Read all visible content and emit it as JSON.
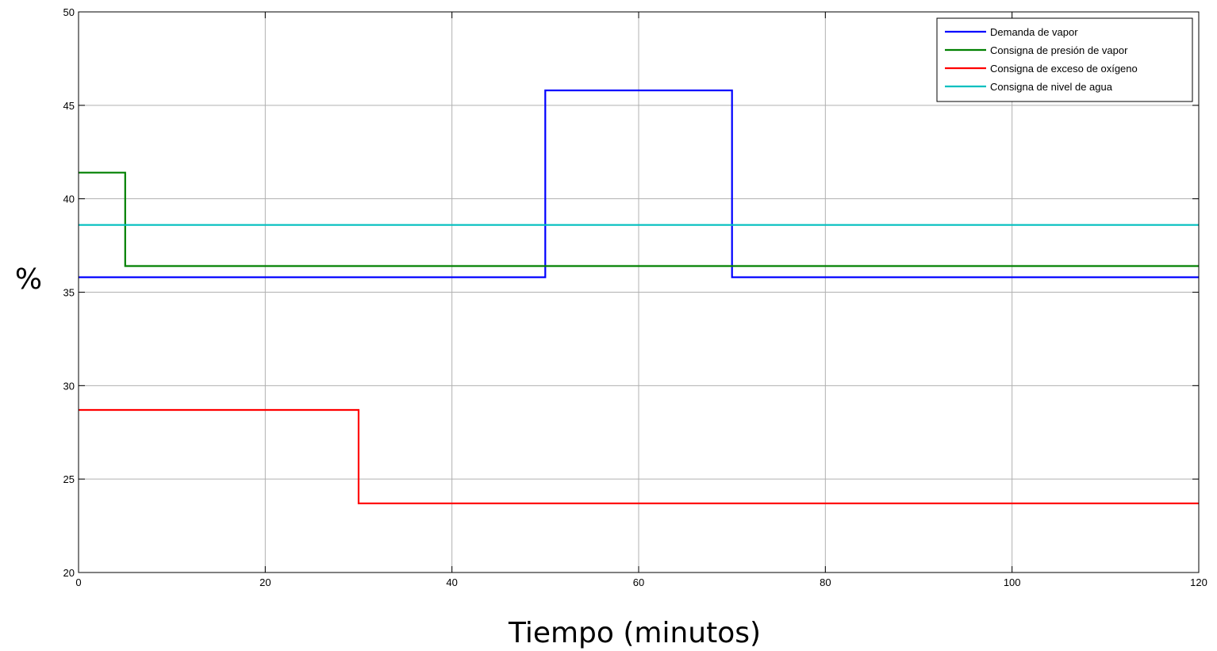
{
  "chart_data": {
    "type": "line",
    "step": true,
    "xlabel": "Tiempo (minutos)",
    "ylabel": "%",
    "xlim": [
      0,
      120
    ],
    "ylim": [
      20,
      50
    ],
    "xticks": [
      "0",
      "20",
      "40",
      "60",
      "80",
      "100",
      "120"
    ],
    "yticks": [
      "20",
      "25",
      "30",
      "35",
      "40",
      "45",
      "50"
    ],
    "grid": true,
    "legend_position": "top-right",
    "series": [
      {
        "name": "Demanda de vapor",
        "color": "#0000ff",
        "x": [
          0,
          50,
          50,
          70,
          70,
          120
        ],
        "y": [
          35.8,
          35.8,
          45.8,
          45.8,
          35.8,
          35.8
        ]
      },
      {
        "name": "Consigna de presión de vapor",
        "color": "#008000",
        "x": [
          0,
          5,
          5,
          120
        ],
        "y": [
          41.4,
          41.4,
          36.4,
          36.4
        ]
      },
      {
        "name": "Consigna de exceso de oxígeno",
        "color": "#ff0000",
        "x": [
          0,
          30,
          30,
          120
        ],
        "y": [
          28.7,
          28.7,
          23.7,
          23.7
        ]
      },
      {
        "name": "Consigna de nivel de agua",
        "color": "#00bfbf",
        "x": [
          0,
          120
        ],
        "y": [
          38.6,
          38.6
        ]
      }
    ]
  }
}
